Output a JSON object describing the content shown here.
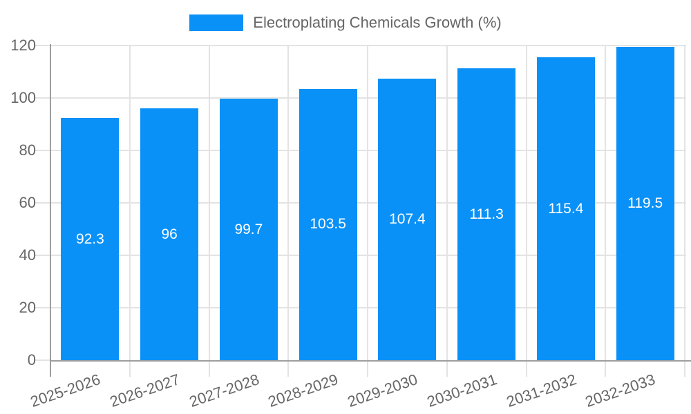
{
  "legend": {
    "label": "Electroplating Chemicals Growth (%)"
  },
  "chart_data": {
    "type": "bar",
    "title": "Electroplating Chemicals Growth (%)",
    "categories": [
      "2025-2026",
      "2026-2027",
      "2027-2028",
      "2028-2029",
      "2029-2030",
      "2030-2031",
      "2031-2032",
      "2032-2033"
    ],
    "values": [
      92.3,
      96,
      99.7,
      103.5,
      107.4,
      111.3,
      115.4,
      119.5
    ],
    "xlabel": "",
    "ylabel": "",
    "ylim": [
      0,
      120
    ],
    "yticks": [
      0,
      20,
      40,
      60,
      80,
      100,
      120
    ],
    "grid": true,
    "legend_position": "top",
    "colors": {
      "bar": "#0a91f7",
      "axis": "#9e9e9e",
      "gridline": "#e3e3e3",
      "tick_label": "#666666",
      "legend_text": "#666666",
      "value_label": "#ffffff"
    }
  }
}
